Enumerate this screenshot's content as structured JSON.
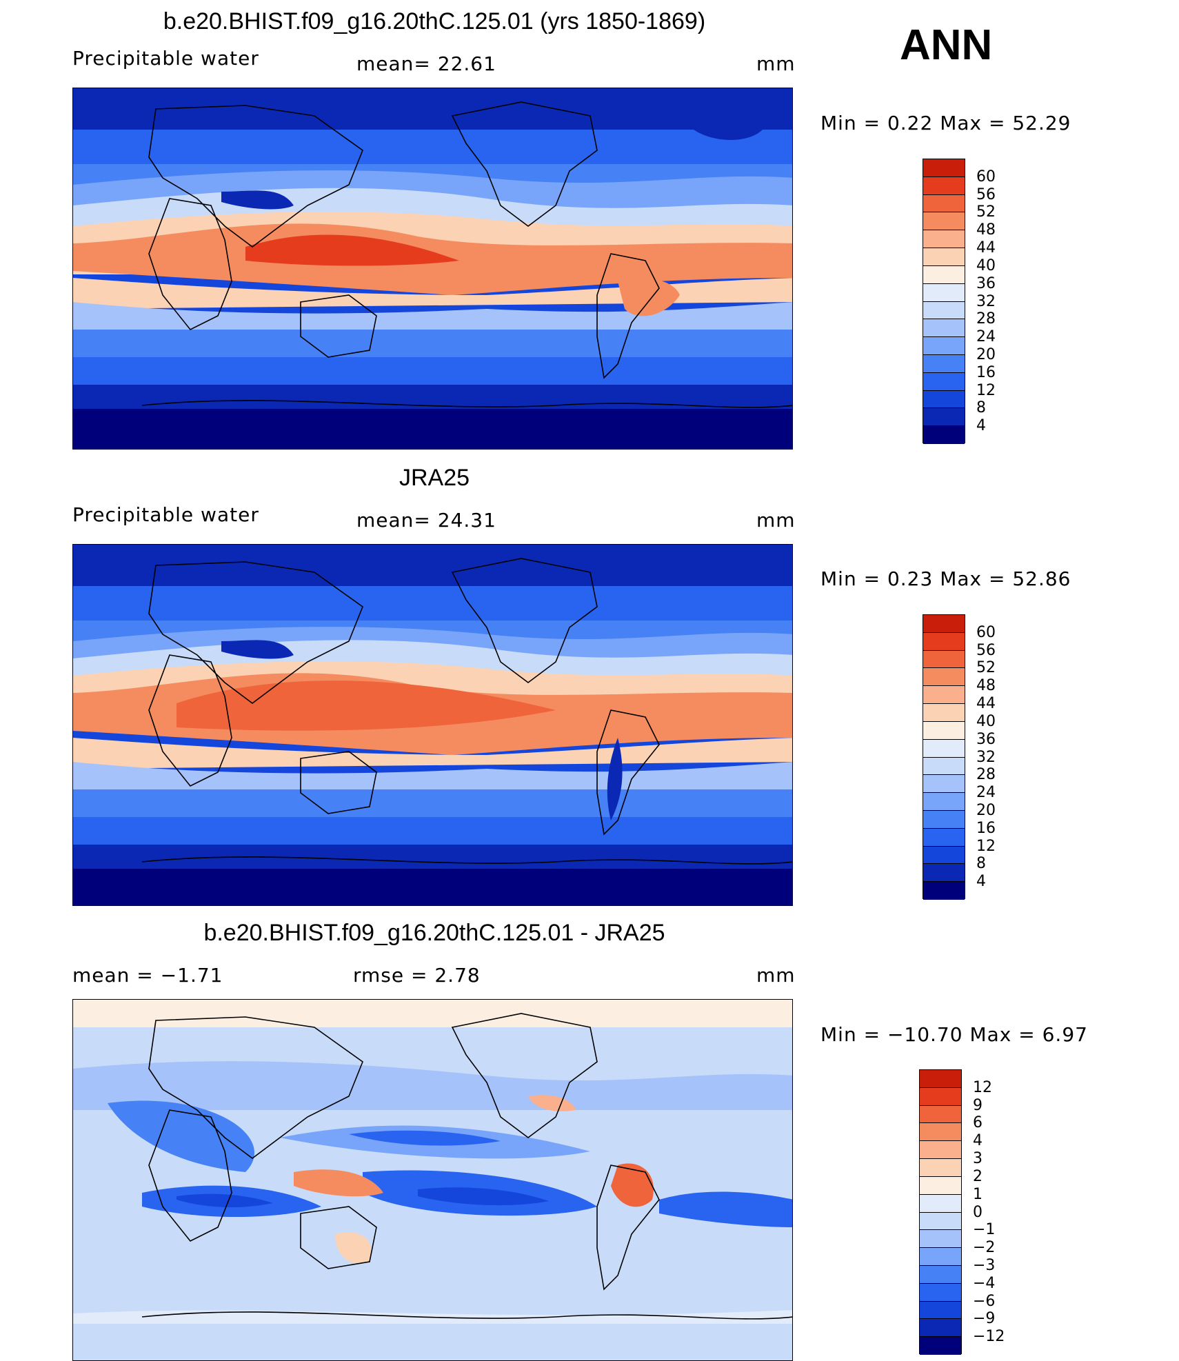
{
  "season": "ANN",
  "colors": {
    "abs_scale": [
      "#00007a",
      "#0a28b4",
      "#1446dc",
      "#2864f0",
      "#4682f5",
      "#78a5fa",
      "#a5c3fa",
      "#c8dcfa",
      "#e1ebfa",
      "#fceee0",
      "#fcd2b4",
      "#fab08c",
      "#f58c60",
      "#f0643c",
      "#e63c1e",
      "#c81e0a",
      "#961400",
      "#780000"
    ],
    "diff_scale": [
      "#00007a",
      "#0a28b4",
      "#1446dc",
      "#2864f0",
      "#4682f5",
      "#78a5fa",
      "#a5c3fa",
      "#c8dcfa",
      "#e1ebfa",
      "#fceee0",
      "#fcd2b4",
      "#fab08c",
      "#f58c60",
      "#f0643c",
      "#e63c1e",
      "#c81e0a",
      "#780000"
    ]
  },
  "panels": [
    {
      "title": "b.e20.BHIST.f09_g16.20thC.125.01 (yrs 1850-1869)",
      "left_label": "Precipitable  water",
      "center_label": "mean=   22.61",
      "units": "mm",
      "minmax": "Min  =     0.22  Max  =    52.29",
      "ticks": [
        "60",
        "56",
        "52",
        "48",
        "44",
        "40",
        "36",
        "32",
        "28",
        "24",
        "20",
        "16",
        "12",
        "8",
        "4"
      ]
    },
    {
      "title": "JRA25",
      "left_label": "Precipitable  water",
      "center_label": "mean=   24.31",
      "units": "mm",
      "minmax": "Min  =     0.23  Max  =    52.86",
      "ticks": [
        "60",
        "56",
        "52",
        "48",
        "44",
        "40",
        "36",
        "32",
        "28",
        "24",
        "20",
        "16",
        "12",
        "8",
        "4"
      ]
    },
    {
      "title": "b.e20.BHIST.f09_g16.20thC.125.01 - JRA25",
      "left_label": "mean  =    −1.71",
      "center_label": "rmse  =     2.78",
      "units": "mm",
      "minmax": "Min  = −10.70  Max  =     6.97",
      "ticks": [
        "12",
        "9",
        "6",
        "4",
        "3",
        "2",
        "1",
        "0",
        "−1",
        "−2",
        "−3",
        "−4",
        "−6",
        "−9",
        "−12"
      ]
    }
  ]
}
